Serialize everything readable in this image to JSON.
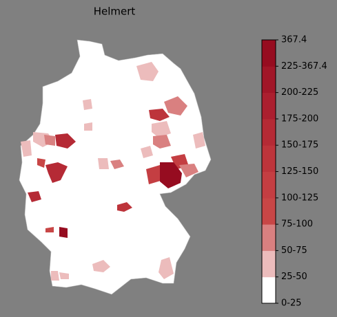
{
  "title": "Helmert",
  "colorbar": {
    "labels": [
      "0-25",
      "25-50",
      "50-75",
      "75-100",
      "100-125",
      "125-150",
      "150-175",
      "175-200",
      "200-225",
      "225-367.4",
      "367.4"
    ],
    "colors": [
      "#ffffff",
      "#ecbcbc",
      "#d98080",
      "#c84646",
      "#c43e42",
      "#bd343b",
      "#b52a35",
      "#ab1f2f",
      "#a11628",
      "#960c20"
    ]
  }
}
